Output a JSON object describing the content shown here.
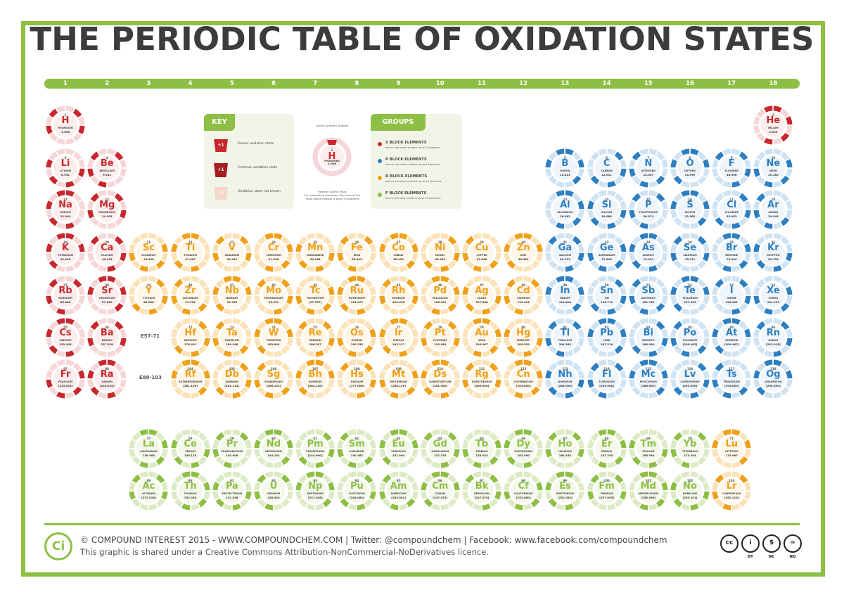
{
  "title": "THE PERIODIC TABLE OF OXIDATION STATES",
  "group_numbers": [
    "1",
    "2",
    "3",
    "4",
    "5",
    "6",
    "7",
    "8",
    "9",
    "10",
    "11",
    "12",
    "13",
    "14",
    "15",
    "16",
    "17",
    "18"
  ],
  "colors": {
    "s_block": "#c8282d",
    "p_block": "#2d7fc1",
    "d_block": "#f0a019",
    "f_block": "#8dbf44",
    "frame": "#8dbf44"
  },
  "key": {
    "title": "KEY",
    "items": [
      {
        "badge": "+1",
        "text": "Known oxidation state"
      },
      {
        "badge": "+1",
        "text": "Common oxidation state"
      },
      {
        "badge": "+1",
        "text": "Oxidation state not known"
      }
    ]
  },
  "sample": {
    "top_label": "Atomic (proton) Number",
    "number": "1",
    "symbol": "H",
    "name": "HYDROGEN",
    "mass": "1.008",
    "bottom_label": "Relative Atomic Mass",
    "bottom_note_1": "For radioactive elements, the mass of the",
    "bottom_note_2": "most stable isotope is given in brackets"
  },
  "groups": {
    "title": "GROUPS",
    "items": [
      {
        "label": "S BLOCK ELEMENTS",
        "desc": "each s sub-shell contains up to 2 electrons",
        "color": "#c8282d"
      },
      {
        "label": "P BLOCK ELEMENTS",
        "desc": "each p sub-shell contains up to 6 electrons",
        "color": "#2d7fc1"
      },
      {
        "label": "D BLOCK ELEMENTS",
        "desc": "each d sub-shell contains up to 10 electrons",
        "color": "#f0a019"
      },
      {
        "label": "F BLOCK ELEMENTS",
        "desc": "each f sub-shell contains up to 14 electrons",
        "color": "#8dbf44"
      }
    ]
  },
  "placeholders": [
    "E57-71",
    "E89-103"
  ],
  "elements": [
    {
      "n": "1",
      "s": "H",
      "name": "HYDROGEN",
      "m": "1.008",
      "r": 1,
      "c": 1,
      "b": "s"
    },
    {
      "n": "2",
      "s": "He",
      "name": "HELIUM",
      "m": "4.003",
      "r": 1,
      "c": 18,
      "b": "s"
    },
    {
      "n": "3",
      "s": "Li",
      "name": "LITHIUM",
      "m": "6.941",
      "r": 2,
      "c": 1,
      "b": "s"
    },
    {
      "n": "4",
      "s": "Be",
      "name": "BERYLLIUM",
      "m": "9.012",
      "r": 2,
      "c": 2,
      "b": "s"
    },
    {
      "n": "5",
      "s": "B",
      "name": "BORON",
      "m": "10.811",
      "r": 2,
      "c": 13,
      "b": "p"
    },
    {
      "n": "6",
      "s": "C",
      "name": "CARBON",
      "m": "12.011",
      "r": 2,
      "c": 14,
      "b": "p"
    },
    {
      "n": "7",
      "s": "N",
      "name": "NITROGEN",
      "m": "14.007",
      "r": 2,
      "c": 15,
      "b": "p"
    },
    {
      "n": "8",
      "s": "O",
      "name": "OXYGEN",
      "m": "15.999",
      "r": 2,
      "c": 16,
      "b": "p"
    },
    {
      "n": "9",
      "s": "F",
      "name": "FLUORINE",
      "m": "18.998",
      "r": 2,
      "c": 17,
      "b": "p"
    },
    {
      "n": "10",
      "s": "Ne",
      "name": "NEON",
      "m": "20.180",
      "r": 2,
      "c": 18,
      "b": "p"
    },
    {
      "n": "11",
      "s": "Na",
      "name": "SODIUM",
      "m": "22.990",
      "r": 3,
      "c": 1,
      "b": "s"
    },
    {
      "n": "12",
      "s": "Mg",
      "name": "MAGNESIUM",
      "m": "24.305",
      "r": 3,
      "c": 2,
      "b": "s"
    },
    {
      "n": "13",
      "s": "Al",
      "name": "ALUMINIUM",
      "m": "26.982",
      "r": 3,
      "c": 13,
      "b": "p"
    },
    {
      "n": "14",
      "s": "Si",
      "name": "SILICON",
      "m": "28.086",
      "r": 3,
      "c": 14,
      "b": "p"
    },
    {
      "n": "15",
      "s": "P",
      "name": "PHOSPHORUS",
      "m": "30.974",
      "r": 3,
      "c": 15,
      "b": "p"
    },
    {
      "n": "16",
      "s": "S",
      "name": "SULFUR",
      "m": "32.065",
      "r": 3,
      "c": 16,
      "b": "p"
    },
    {
      "n": "17",
      "s": "Cl",
      "name": "CHLORINE",
      "m": "35.453",
      "r": 3,
      "c": 17,
      "b": "p"
    },
    {
      "n": "18",
      "s": "Ar",
      "name": "ARGON",
      "m": "39.948",
      "r": 3,
      "c": 18,
      "b": "p"
    },
    {
      "n": "19",
      "s": "K",
      "name": "POTASSIUM",
      "m": "39.098",
      "r": 4,
      "c": 1,
      "b": "s"
    },
    {
      "n": "20",
      "s": "Ca",
      "name": "CALCIUM",
      "m": "40.078",
      "r": 4,
      "c": 2,
      "b": "s"
    },
    {
      "n": "21",
      "s": "Sc",
      "name": "SCANDIUM",
      "m": "44.956",
      "r": 4,
      "c": 3,
      "b": "d"
    },
    {
      "n": "22",
      "s": "Ti",
      "name": "TITANIUM",
      "m": "47.867",
      "r": 4,
      "c": 4,
      "b": "d"
    },
    {
      "n": "23",
      "s": "V",
      "name": "VANADIUM",
      "m": "50.942",
      "r": 4,
      "c": 5,
      "b": "d"
    },
    {
      "n": "24",
      "s": "Cr",
      "name": "CHROMIUM",
      "m": "51.996",
      "r": 4,
      "c": 6,
      "b": "d"
    },
    {
      "n": "25",
      "s": "Mn",
      "name": "MANGANESE",
      "m": "54.938",
      "r": 4,
      "c": 7,
      "b": "d"
    },
    {
      "n": "26",
      "s": "Fe",
      "name": "IRON",
      "m": "55.845",
      "r": 4,
      "c": 8,
      "b": "d"
    },
    {
      "n": "27",
      "s": "Co",
      "name": "COBALT",
      "m": "58.933",
      "r": 4,
      "c": 9,
      "b": "d"
    },
    {
      "n": "28",
      "s": "Ni",
      "name": "NICKEL",
      "m": "58.693",
      "r": 4,
      "c": 10,
      "b": "d"
    },
    {
      "n": "29",
      "s": "Cu",
      "name": "COPPER",
      "m": "63.546",
      "r": 4,
      "c": 11,
      "b": "d"
    },
    {
      "n": "30",
      "s": "Zn",
      "name": "ZINC",
      "m": "65.382",
      "r": 4,
      "c": 12,
      "b": "d"
    },
    {
      "n": "31",
      "s": "Ga",
      "name": "GALLIUM",
      "m": "69.723",
      "r": 4,
      "c": 13,
      "b": "p"
    },
    {
      "n": "32",
      "s": "Ge",
      "name": "GERMANIUM",
      "m": "72.640",
      "r": 4,
      "c": 14,
      "b": "p"
    },
    {
      "n": "33",
      "s": "As",
      "name": "ARSENIC",
      "m": "74.922",
      "r": 4,
      "c": 15,
      "b": "p"
    },
    {
      "n": "34",
      "s": "Se",
      "name": "SELENIUM",
      "m": "78.971",
      "r": 4,
      "c": 16,
      "b": "p"
    },
    {
      "n": "35",
      "s": "Br",
      "name": "BROMINE",
      "m": "79.904",
      "r": 4,
      "c": 17,
      "b": "p"
    },
    {
      "n": "36",
      "s": "Kr",
      "name": "KRYPTON",
      "m": "83.798",
      "r": 4,
      "c": 18,
      "b": "p"
    },
    {
      "n": "37",
      "s": "Rb",
      "name": "RUBIDIUM",
      "m": "85.468",
      "r": 5,
      "c": 1,
      "b": "s"
    },
    {
      "n": "38",
      "s": "Sr",
      "name": "STRONTIUM",
      "m": "87.620",
      "r": 5,
      "c": 2,
      "b": "s"
    },
    {
      "n": "39",
      "s": "Y",
      "name": "YTTRIUM",
      "m": "88.906",
      "r": 5,
      "c": 3,
      "b": "d"
    },
    {
      "n": "40",
      "s": "Zr",
      "name": "ZIRCONIUM",
      "m": "91.224",
      "r": 5,
      "c": 4,
      "b": "d"
    },
    {
      "n": "41",
      "s": "Nb",
      "name": "NIOBIUM",
      "m": "92.906",
      "r": 5,
      "c": 5,
      "b": "d"
    },
    {
      "n": "42",
      "s": "Mo",
      "name": "MOLYBDENUM",
      "m": "95.951",
      "r": 5,
      "c": 6,
      "b": "d"
    },
    {
      "n": "43",
      "s": "Tc",
      "name": "TECHNETIUM",
      "m": "[97.907]",
      "r": 5,
      "c": 7,
      "b": "d"
    },
    {
      "n": "44",
      "s": "Ru",
      "name": "RUTHENIUM",
      "m": "101.072",
      "r": 5,
      "c": 8,
      "b": "d"
    },
    {
      "n": "45",
      "s": "Rh",
      "name": "RHODIUM",
      "m": "102.906",
      "r": 5,
      "c": 9,
      "b": "d"
    },
    {
      "n": "46",
      "s": "Pd",
      "name": "PALLADIUM",
      "m": "106.421",
      "r": 5,
      "c": 10,
      "b": "d"
    },
    {
      "n": "47",
      "s": "Ag",
      "name": "SILVER",
      "m": "107.868",
      "r": 5,
      "c": 11,
      "b": "d"
    },
    {
      "n": "48",
      "s": "Cd",
      "name": "CADMIUM",
      "m": "112.414",
      "r": 5,
      "c": 12,
      "b": "d"
    },
    {
      "n": "49",
      "s": "In",
      "name": "INDIUM",
      "m": "114.818",
      "r": 5,
      "c": 13,
      "b": "p"
    },
    {
      "n": "50",
      "s": "Sn",
      "name": "TIN",
      "m": "118.711",
      "r": 5,
      "c": 14,
      "b": "p"
    },
    {
      "n": "51",
      "s": "Sb",
      "name": "ANTIMONY",
      "m": "121.760",
      "r": 5,
      "c": 15,
      "b": "p"
    },
    {
      "n": "52",
      "s": "Te",
      "name": "TELLURIUM",
      "m": "127.603",
      "r": 5,
      "c": 16,
      "b": "p"
    },
    {
      "n": "53",
      "s": "I",
      "name": "IODINE",
      "m": "126.904",
      "r": 5,
      "c": 17,
      "b": "p"
    },
    {
      "n": "54",
      "s": "Xe",
      "name": "XENON",
      "m": "131.294",
      "r": 5,
      "c": 18,
      "b": "p"
    },
    {
      "n": "55",
      "s": "Cs",
      "name": "CAESIUM",
      "m": "132.905",
      "r": 6,
      "c": 1,
      "b": "s"
    },
    {
      "n": "56",
      "s": "Ba",
      "name": "BARIUM",
      "m": "137.328",
      "r": 6,
      "c": 2,
      "b": "s"
    },
    {
      "n": "72",
      "s": "Hf",
      "name": "HAFNIUM",
      "m": "178.492",
      "r": 6,
      "c": 4,
      "b": "d"
    },
    {
      "n": "73",
      "s": "Ta",
      "name": "TANTALUM",
      "m": "180.948",
      "r": 6,
      "c": 5,
      "b": "d"
    },
    {
      "n": "74",
      "s": "W",
      "name": "TUNGSTEN",
      "m": "183.841",
      "r": 6,
      "c": 6,
      "b": "d"
    },
    {
      "n": "75",
      "s": "Re",
      "name": "RHENIUM",
      "m": "186.207",
      "r": 6,
      "c": 7,
      "b": "d"
    },
    {
      "n": "76",
      "s": "Os",
      "name": "OSMIUM",
      "m": "190.233",
      "r": 6,
      "c": 8,
      "b": "d"
    },
    {
      "n": "77",
      "s": "Ir",
      "name": "IRIDIUM",
      "m": "192.217",
      "r": 6,
      "c": 9,
      "b": "d"
    },
    {
      "n": "78",
      "s": "Pt",
      "name": "PLATINUM",
      "m": "195.084",
      "r": 6,
      "c": 10,
      "b": "d"
    },
    {
      "n": "79",
      "s": "Au",
      "name": "GOLD",
      "m": "196.967",
      "r": 6,
      "c": 11,
      "b": "d"
    },
    {
      "n": "80",
      "s": "Hg",
      "name": "MERCURY",
      "m": "200.592",
      "r": 6,
      "c": 12,
      "b": "d"
    },
    {
      "n": "81",
      "s": "Tl",
      "name": "THALLIUM",
      "m": "204.383",
      "r": 6,
      "c": 13,
      "b": "p"
    },
    {
      "n": "82",
      "s": "Pb",
      "name": "LEAD",
      "m": "207.210",
      "r": 6,
      "c": 14,
      "b": "p"
    },
    {
      "n": "83",
      "s": "Bi",
      "name": "BISMUTH",
      "m": "208.980",
      "r": 6,
      "c": 15,
      "b": "p"
    },
    {
      "n": "84",
      "s": "Po",
      "name": "POLONIUM",
      "m": "[208.982]",
      "r": 6,
      "c": 16,
      "b": "p"
    },
    {
      "n": "85",
      "s": "At",
      "name": "ASTATINE",
      "m": "[209.987]",
      "r": 6,
      "c": 17,
      "b": "p"
    },
    {
      "n": "86",
      "s": "Rn",
      "name": "RADON",
      "m": "[222.018]",
      "r": 6,
      "c": 18,
      "b": "p"
    },
    {
      "n": "87",
      "s": "Fr",
      "name": "FRANCIUM",
      "m": "[223.020]",
      "r": 7,
      "c": 1,
      "b": "s"
    },
    {
      "n": "88",
      "s": "Ra",
      "name": "RADIUM",
      "m": "[226.025]",
      "r": 7,
      "c": 2,
      "b": "s"
    },
    {
      "n": "104",
      "s": "Rf",
      "name": "RUTHERFORDIUM",
      "m": "[261.109]",
      "r": 7,
      "c": 4,
      "b": "d"
    },
    {
      "n": "105",
      "s": "Db",
      "name": "DUBNIUM",
      "m": "[262.114]",
      "r": 7,
      "c": 5,
      "b": "d"
    },
    {
      "n": "106",
      "s": "Sg",
      "name": "SEABORGIUM",
      "m": "[266.123]",
      "r": 7,
      "c": 6,
      "b": "d"
    },
    {
      "n": "107",
      "s": "Bh",
      "name": "BOHRIUM",
      "m": "[264.120]",
      "r": 7,
      "c": 7,
      "b": "d"
    },
    {
      "n": "108",
      "s": "Hs",
      "name": "HASSIUM",
      "m": "[277.000]",
      "r": 7,
      "c": 8,
      "b": "d"
    },
    {
      "n": "109",
      "s": "Mt",
      "name": "MEITNERIUM",
      "m": "[268.139]",
      "r": 7,
      "c": 9,
      "b": "d"
    },
    {
      "n": "110",
      "s": "Ds",
      "name": "DARMSTADTIUM",
      "m": "[281.000]",
      "r": 7,
      "c": 10,
      "b": "d"
    },
    {
      "n": "111",
      "s": "Rg",
      "name": "ROENTGENIUM",
      "m": "[280.000]",
      "r": 7,
      "c": 11,
      "b": "d"
    },
    {
      "n": "112",
      "s": "Cn",
      "name": "COPERNICIUM",
      "m": "[285.000]",
      "r": 7,
      "c": 12,
      "b": "d"
    },
    {
      "n": "113",
      "s": "Nh",
      "name": "NIHONIUM",
      "m": "[284.000]",
      "r": 7,
      "c": 13,
      "b": "p"
    },
    {
      "n": "114",
      "s": "Fl",
      "name": "FLEROVIUM",
      "m": "[289.000]",
      "r": 7,
      "c": 14,
      "b": "p"
    },
    {
      "n": "115",
      "s": "Mc",
      "name": "MOSCOVIUM",
      "m": "[288.000]",
      "r": 7,
      "c": 15,
      "b": "p"
    },
    {
      "n": "116",
      "s": "Lv",
      "name": "LIVERMORIUM",
      "m": "[293.000]",
      "r": 7,
      "c": 16,
      "b": "p"
    },
    {
      "n": "117",
      "s": "Ts",
      "name": "TENNESSINE",
      "m": "[294.000]",
      "r": 7,
      "c": 17,
      "b": "p"
    },
    {
      "n": "118",
      "s": "Og",
      "name": "OGANESSON",
      "m": "[294.000]",
      "r": 7,
      "c": 18,
      "b": "p"
    },
    {
      "n": "57",
      "s": "La",
      "name": "LANTHANUM",
      "m": "138.905",
      "r": 9,
      "c": 3,
      "b": "f"
    },
    {
      "n": "58",
      "s": "Ce",
      "name": "CERIUM",
      "m": "140.116",
      "r": 9,
      "c": 4,
      "b": "f"
    },
    {
      "n": "59",
      "s": "Pr",
      "name": "PRASEODYMIUM",
      "m": "140.908",
      "r": 9,
      "c": 5,
      "b": "f"
    },
    {
      "n": "60",
      "s": "Nd",
      "name": "NEODYMIUM",
      "m": "144.242",
      "r": 9,
      "c": 6,
      "b": "f"
    },
    {
      "n": "61",
      "s": "Pm",
      "name": "PROMETHIUM",
      "m": "[144.000]",
      "r": 9,
      "c": 7,
      "b": "f"
    },
    {
      "n": "62",
      "s": "Sm",
      "name": "SAMARIUM",
      "m": "150.362",
      "r": 9,
      "c": 8,
      "b": "f"
    },
    {
      "n": "63",
      "s": "Eu",
      "name": "EUROPIUM",
      "m": "151.964",
      "r": 9,
      "c": 9,
      "b": "f"
    },
    {
      "n": "64",
      "s": "Gd",
      "name": "GADOLINIUM",
      "m": "157.253",
      "r": 9,
      "c": 10,
      "b": "f"
    },
    {
      "n": "65",
      "s": "Tb",
      "name": "TERBIUM",
      "m": "158.925",
      "r": 9,
      "c": 11,
      "b": "f"
    },
    {
      "n": "66",
      "s": "Dy",
      "name": "DYSPROSIUM",
      "m": "162.500",
      "r": 9,
      "c": 12,
      "b": "f"
    },
    {
      "n": "67",
      "s": "Ho",
      "name": "HOLMIUM",
      "m": "164.930",
      "r": 9,
      "c": 13,
      "b": "f"
    },
    {
      "n": "68",
      "s": "Er",
      "name": "ERBIUM",
      "m": "167.259",
      "r": 9,
      "c": 14,
      "b": "f"
    },
    {
      "n": "69",
      "s": "Tm",
      "name": "THULIUM",
      "m": "168.934",
      "r": 9,
      "c": 15,
      "b": "f"
    },
    {
      "n": "70",
      "s": "Yb",
      "name": "YTTERBIUM",
      "m": "173.054",
      "r": 9,
      "c": 16,
      "b": "f"
    },
    {
      "n": "71",
      "s": "Lu",
      "name": "LUTETIUM",
      "m": "174.967",
      "r": 9,
      "c": 17,
      "b": "d"
    },
    {
      "n": "89",
      "s": "Ac",
      "name": "ACTINIUM",
      "m": "[227.028]",
      "r": 10,
      "c": 3,
      "b": "f"
    },
    {
      "n": "90",
      "s": "Th",
      "name": "THORIUM",
      "m": "232.038",
      "r": 10,
      "c": 4,
      "b": "f"
    },
    {
      "n": "91",
      "s": "Pa",
      "name": "PROTACTINIUM",
      "m": "231.036",
      "r": 10,
      "c": 5,
      "b": "f"
    },
    {
      "n": "92",
      "s": "U",
      "name": "URANIUM",
      "m": "238.029",
      "r": 10,
      "c": 6,
      "b": "f"
    },
    {
      "n": "93",
      "s": "Np",
      "name": "NEPTUNIUM",
      "m": "[237.048]",
      "r": 10,
      "c": 7,
      "b": "f"
    },
    {
      "n": "94",
      "s": "Pu",
      "name": "PLUTONIUM",
      "m": "[244.064]",
      "r": 10,
      "c": 8,
      "b": "f"
    },
    {
      "n": "95",
      "s": "Am",
      "name": "AMERICIUM",
      "m": "[243.061]",
      "r": 10,
      "c": 9,
      "b": "f"
    },
    {
      "n": "96",
      "s": "Cm",
      "name": "CURIUM",
      "m": "[247.070]",
      "r": 10,
      "c": 10,
      "b": "f"
    },
    {
      "n": "97",
      "s": "Bk",
      "name": "BERKELIUM",
      "m": "[247.070]",
      "r": 10,
      "c": 11,
      "b": "f"
    },
    {
      "n": "98",
      "s": "Cf",
      "name": "CALIFORNIUM",
      "m": "[251.080]",
      "r": 10,
      "c": 12,
      "b": "f"
    },
    {
      "n": "99",
      "s": "Es",
      "name": "EINSTEINIUM",
      "m": "[252.083]",
      "r": 10,
      "c": 13,
      "b": "f"
    },
    {
      "n": "100",
      "s": "Fm",
      "name": "FERMIUM",
      "m": "[257.095]",
      "r": 10,
      "c": 14,
      "b": "f"
    },
    {
      "n": "101",
      "s": "Md",
      "name": "MENDELEVIUM",
      "m": "[258.098]",
      "r": 10,
      "c": 15,
      "b": "f"
    },
    {
      "n": "102",
      "s": "No",
      "name": "NOBELIUM",
      "m": "[259.101]",
      "r": 10,
      "c": 16,
      "b": "f"
    },
    {
      "n": "103",
      "s": "Lr",
      "name": "LAWRENCIUM",
      "m": "[262.110]",
      "r": 10,
      "c": 17,
      "b": "d"
    }
  ],
  "footer": {
    "logo": "Ci",
    "credit": "© COMPOUND INTEREST 2015 - WWW.COMPOUNDCHEM.COM | Twitter: @compoundchem | Facebook: www.facebook.com/compoundchem",
    "license": "This graphic is shared under a Creative Commons Attribution-NonCommercial-NoDerivatives licence.",
    "cc_badges": [
      {
        "sym": "cc",
        "label": ""
      },
      {
        "sym": "i",
        "label": "BY"
      },
      {
        "sym": "$",
        "label": "NC"
      },
      {
        "sym": "=",
        "label": "ND"
      }
    ]
  }
}
